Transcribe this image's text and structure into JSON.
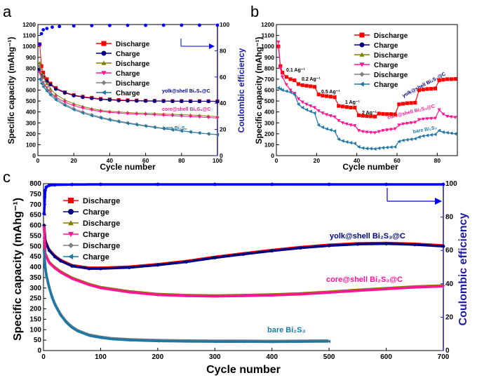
{
  "panel_labels": [
    "a",
    "b",
    "c"
  ],
  "colors": {
    "discharge_red": "#ff0000",
    "charge_navy": "#000080",
    "discharge_olive": "#808000",
    "charge_magenta": "#ff1493",
    "discharge_gray": "#808080",
    "charge_teal": "#1f77a4",
    "ce_blue": "#0000ff",
    "axis_right": "#1a1aa8"
  },
  "chart_data": [
    {
      "panel": "a",
      "type": "scatter",
      "xlabel": "Cycle number",
      "ylabel": "Specific capacity (mAhg⁻¹)",
      "y2label": "Coulombic efficiency",
      "xlim": [
        0,
        100
      ],
      "ylim": [
        0,
        1200
      ],
      "y2lim": [
        0,
        100
      ],
      "xticks": [
        0,
        20,
        40,
        60,
        80,
        100
      ],
      "yticks": [
        0,
        100,
        200,
        300,
        400,
        500,
        600,
        700,
        800,
        900,
        1000,
        1100,
        1200
      ],
      "y2ticks": [
        0,
        20,
        40,
        60,
        80,
        100
      ],
      "legend": [
        "Discharge",
        "Charge",
        "Discharge",
        "Charge",
        "Discharge",
        "Charge"
      ],
      "annotations": [
        "yolk@shell Bi₂S₃@C",
        "core@shell Bi₂S₃@C",
        "bare Bi₂S₃"
      ],
      "x": [
        1,
        2,
        3,
        5,
        7,
        10,
        15,
        20,
        25,
        30,
        35,
        40,
        45,
        50,
        55,
        60,
        65,
        70,
        75,
        80,
        85,
        90,
        95,
        100
      ],
      "series": [
        {
          "name": "Discharge",
          "marker": "square",
          "color": "#ff0000",
          "values": [
            1020,
            820,
            760,
            700,
            660,
            620,
            580,
            555,
            540,
            530,
            520,
            515,
            510,
            507,
            505,
            503,
            502,
            501,
            500,
            500,
            499,
            499,
            499,
            498
          ]
        },
        {
          "name": "Charge",
          "marker": "circle",
          "color": "#000080",
          "values": [
            790,
            750,
            720,
            680,
            650,
            610,
            575,
            550,
            535,
            525,
            515,
            510,
            505,
            503,
            501,
            500,
            499,
            499,
            498,
            498,
            497,
            497,
            497,
            496
          ]
        },
        {
          "name": "Discharge",
          "marker": "triangle-up",
          "color": "#808000",
          "values": [
            850,
            760,
            720,
            660,
            610,
            560,
            510,
            475,
            450,
            430,
            415,
            405,
            400,
            395,
            390,
            388,
            385,
            380,
            378,
            375,
            372,
            368,
            362,
            358
          ]
        },
        {
          "name": "Charge",
          "marker": "triangle-down",
          "color": "#ff1493",
          "values": [
            760,
            700,
            670,
            620,
            580,
            535,
            490,
            458,
            435,
            418,
            405,
            396,
            390,
            384,
            380,
            377,
            374,
            370,
            366,
            362,
            358,
            354,
            349,
            345
          ]
        },
        {
          "name": "Discharge",
          "marker": "diamond",
          "color": "#808080",
          "values": [
            820,
            700,
            660,
            610,
            570,
            525,
            470,
            430,
            400,
            375,
            353,
            334,
            317,
            302,
            288,
            274,
            262,
            250,
            238,
            228,
            218,
            208,
            200,
            193
          ]
        },
        {
          "name": "Charge",
          "marker": "triangle-left",
          "color": "#1f77a4",
          "values": [
            700,
            660,
            630,
            590,
            555,
            510,
            460,
            420,
            390,
            365,
            344,
            326,
            310,
            295,
            282,
            270,
            258,
            247,
            236,
            226,
            216,
            207,
            199,
            192
          ]
        }
      ],
      "ce_series": {
        "marker": "circle",
        "color": "#0000ff",
        "x": [
          1,
          2,
          3,
          5,
          8,
          12,
          20,
          30,
          40,
          50,
          60,
          70,
          80,
          90,
          100
        ],
        "values": [
          85,
          93,
          96,
          97,
          98,
          98.5,
          99,
          99.2,
          99.3,
          99.4,
          99.4,
          99.5,
          99.5,
          99.5,
          99.5
        ]
      }
    },
    {
      "panel": "b",
      "type": "scatter",
      "xlabel": "Cycle number",
      "ylabel": "Specific capacity (mAhg⁻¹)",
      "xlim": [
        0,
        90
      ],
      "ylim": [
        0,
        1200
      ],
      "xticks": [
        0,
        20,
        40,
        60,
        80
      ],
      "yticks": [
        0,
        100,
        200,
        300,
        400,
        500,
        600,
        700,
        800,
        900,
        1000,
        1100,
        1200
      ],
      "legend": [
        "Discharge",
        "Charge",
        "Discharge",
        "Charge",
        "Discharge",
        "Charge"
      ],
      "rate_labels": [
        "0.1 Ag⁻¹",
        "0.2 Ag⁻¹",
        "0.5 Ag⁻¹",
        "1 Ag⁻¹",
        "2 Ag⁻¹"
      ],
      "annotations": [
        "yolk@shell Bi₂S₃@C",
        "core@shell Bi₂S₃@C",
        "bare Bi₂S₃"
      ],
      "series": [
        {
          "name": "yolk@shell",
          "color": "#ff0000",
          "x": [
            1,
            2,
            3,
            5,
            7,
            9,
            11,
            13,
            15,
            17,
            19,
            21,
            23,
            25,
            27,
            29,
            31,
            33,
            35,
            37,
            39,
            41,
            43,
            45,
            47,
            49,
            51,
            53,
            55,
            57,
            59,
            61,
            63,
            65,
            67,
            69,
            71,
            73,
            75,
            77,
            79,
            81,
            83,
            85,
            87,
            89
          ],
          "values": [
            1000,
            820,
            760,
            720,
            700,
            690,
            655,
            645,
            640,
            635,
            630,
            560,
            550,
            545,
            540,
            535,
            455,
            450,
            445,
            440,
            440,
            370,
            365,
            362,
            360,
            358,
            385,
            382,
            380,
            380,
            378,
            470,
            475,
            480,
            482,
            485,
            600,
            605,
            610,
            612,
            615,
            690,
            695,
            700,
            700,
            702
          ]
        },
        {
          "name": "core@shell",
          "color": "#ff1493",
          "x": [
            1,
            2,
            3,
            5,
            7,
            9,
            11,
            13,
            15,
            17,
            19,
            21,
            23,
            25,
            27,
            29,
            31,
            33,
            35,
            37,
            39,
            41,
            43,
            45,
            47,
            49,
            51,
            53,
            55,
            57,
            59,
            61,
            63,
            65,
            67,
            69,
            71,
            73,
            75,
            77,
            79,
            81,
            83,
            85,
            87,
            89
          ],
          "values": [
            1040,
            800,
            720,
            650,
            600,
            570,
            520,
            490,
            470,
            455,
            440,
            410,
            390,
            375,
            365,
            355,
            320,
            300,
            290,
            280,
            275,
            230,
            220,
            215,
            212,
            210,
            220,
            230,
            235,
            240,
            245,
            280,
            290,
            295,
            300,
            305,
            330,
            335,
            338,
            340,
            342,
            420,
            380,
            360,
            355,
            350
          ]
        },
        {
          "name": "bare",
          "color": "#1f77a4",
          "x": [
            1,
            2,
            3,
            5,
            7,
            9,
            11,
            13,
            15,
            17,
            19,
            21,
            23,
            25,
            27,
            29,
            31,
            33,
            35,
            37,
            39,
            41,
            43,
            45,
            47,
            49,
            51,
            53,
            55,
            57,
            59,
            61,
            63,
            65,
            67,
            69,
            71,
            73,
            75,
            77,
            79,
            81,
            83,
            85,
            87,
            89
          ],
          "values": [
            620,
            610,
            600,
            590,
            580,
            560,
            470,
            440,
            420,
            405,
            390,
            280,
            260,
            245,
            235,
            225,
            150,
            135,
            125,
            118,
            112,
            80,
            70,
            66,
            64,
            62,
            68,
            72,
            75,
            78,
            80,
            130,
            140,
            145,
            150,
            155,
            170,
            180,
            185,
            190,
            195,
            230,
            215,
            210,
            205,
            200
          ]
        }
      ]
    },
    {
      "panel": "c",
      "type": "scatter",
      "xlabel": "Cycle number",
      "ylabel": "Specific capacity (mAhg⁻¹)",
      "y2label": "Coulombic efficiency",
      "xlim": [
        0,
        700
      ],
      "ylim": [
        0,
        800
      ],
      "y2lim": [
        0,
        100
      ],
      "xticks": [
        0,
        100,
        200,
        300,
        400,
        500,
        600,
        700
      ],
      "yticks": [
        0,
        50,
        100,
        150,
        200,
        250,
        300,
        350,
        400,
        450,
        500,
        550,
        600,
        650,
        700,
        750,
        800
      ],
      "y2ticks": [
        0,
        20,
        40,
        60,
        80,
        100
      ],
      "legend": [
        "Discharge",
        "Charge",
        "Discharge",
        "Charge",
        "Discharge",
        "Charge"
      ],
      "annotations": [
        "yolk@shell Bi₂S₃@C",
        "core@shell Bi₂S₃@C",
        "bare Bi₂S₃"
      ],
      "series": [
        {
          "name": "yolk@shell",
          "color": "#000080",
          "x": [
            1,
            2,
            5,
            10,
            20,
            30,
            50,
            80,
            100,
            150,
            200,
            250,
            300,
            350,
            400,
            450,
            500,
            550,
            600,
            650,
            700
          ],
          "values": [
            600,
            540,
            510,
            480,
            450,
            430,
            405,
            393,
            393,
            398,
            410,
            425,
            445,
            462,
            478,
            492,
            503,
            510,
            512,
            508,
            500
          ]
        },
        {
          "name": "core@shell",
          "color": "#ff1493",
          "x": [
            1,
            2,
            5,
            10,
            20,
            30,
            50,
            80,
            100,
            150,
            200,
            250,
            300,
            350,
            400,
            450,
            500,
            550,
            600,
            650,
            700
          ],
          "values": [
            590,
            470,
            450,
            420,
            395,
            375,
            345,
            315,
            300,
            280,
            267,
            262,
            260,
            262,
            265,
            270,
            278,
            287,
            295,
            303,
            308
          ]
        },
        {
          "name": "bare",
          "color": "#1f77a4",
          "x": [
            1,
            2,
            5,
            10,
            15,
            20,
            30,
            40,
            50,
            60,
            80,
            100,
            120,
            150,
            200,
            250,
            300,
            350,
            400,
            450,
            500
          ],
          "values": [
            480,
            420,
            360,
            300,
            255,
            220,
            170,
            135,
            110,
            93,
            72,
            62,
            55,
            50,
            46,
            44,
            43,
            43,
            42,
            43,
            44
          ]
        }
      ],
      "ce_series": {
        "marker": "circle",
        "color": "#0000ff",
        "x": [
          1,
          2,
          3,
          5,
          10,
          20,
          50,
          100,
          200,
          300,
          400,
          500,
          600,
          700
        ],
        "values": [
          82,
          92,
          96,
          98,
          99,
          99.3,
          99.5,
          99.6,
          99.6,
          99.6,
          99.6,
          99.6,
          99.6,
          99.6
        ]
      }
    }
  ]
}
